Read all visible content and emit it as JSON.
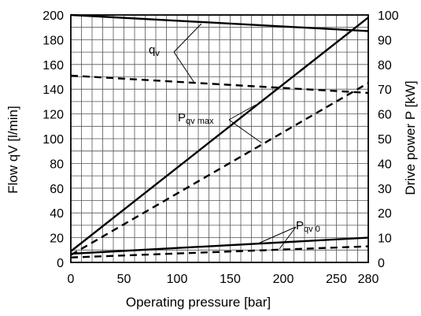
{
  "chart_data": {
    "type": "line",
    "xlabel": "Operating pressure  [bar]",
    "ylabel_left": "Flow qV [l/min]",
    "ylabel_right": "Drive power  P [kW]",
    "xlim": [
      0,
      280
    ],
    "ylim_left": [
      0,
      200
    ],
    "ylim_right": [
      0,
      100
    ],
    "x_ticks": [
      0,
      50,
      100,
      150,
      200,
      250,
      280
    ],
    "y_left_ticks": [
      0,
      20,
      40,
      60,
      80,
      100,
      120,
      140,
      160,
      180,
      200
    ],
    "y_right_ticks": [
      0,
      10,
      20,
      30,
      40,
      50,
      60,
      70,
      80,
      90,
      100
    ],
    "grid": true,
    "series": [
      {
        "axis": "left",
        "style": "solid",
        "x": [
          0,
          280
        ],
        "values": [
          200,
          187
        ]
      },
      {
        "axis": "left",
        "style": "dashed",
        "x": [
          0,
          280
        ],
        "values": [
          151,
          137
        ]
      },
      {
        "axis": "right",
        "style": "solid",
        "x": [
          0,
          280
        ],
        "values": [
          4.5,
          99
        ]
      },
      {
        "axis": "right",
        "style": "dashed",
        "x": [
          0,
          280
        ],
        "values": [
          3,
          72.5
        ]
      },
      {
        "axis": "right",
        "style": "solid",
        "x": [
          0,
          280
        ],
        "values": [
          3.5,
          10
        ]
      },
      {
        "axis": "right",
        "style": "dashed",
        "x": [
          0,
          280
        ],
        "values": [
          2,
          6.5
        ]
      }
    ],
    "annotations": [
      {
        "main": "q",
        "sub": "v"
      },
      {
        "main": "P",
        "sub": "qv max"
      },
      {
        "main": "P",
        "sub": "qv  0"
      }
    ]
  }
}
